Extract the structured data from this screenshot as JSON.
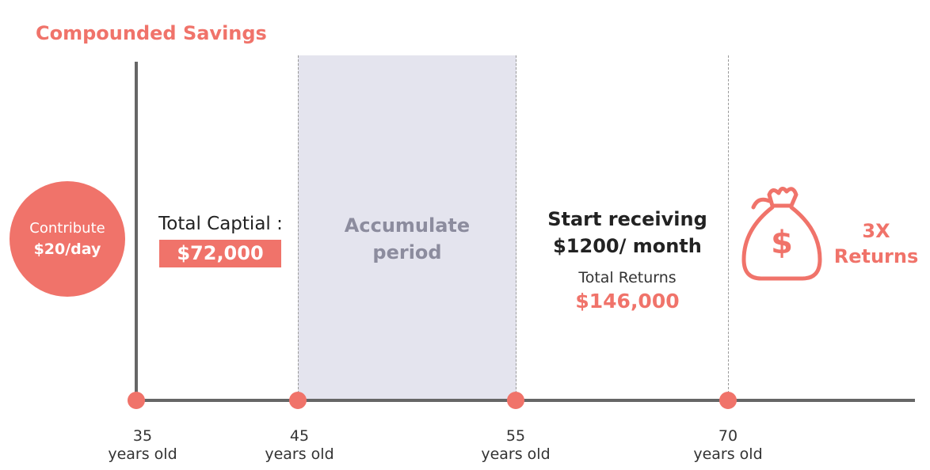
{
  "title": "Compounded Savings",
  "contribution": {
    "line1": "Contribute",
    "line2": "$20/day"
  },
  "capital": {
    "label": "Total Captial :",
    "value": "$72,000"
  },
  "accumulate": {
    "line1": "Accumulate",
    "line2": "period"
  },
  "receiving": {
    "line1": "Start receiving",
    "line2": "$1200/ month"
  },
  "returns": {
    "label": "Total Returns",
    "value": "$146,000"
  },
  "multiplier": {
    "line1": "3X",
    "line2": "Returns"
  },
  "timeline": [
    {
      "age": "35",
      "unit": "years old"
    },
    {
      "age": "45",
      "unit": "years old"
    },
    {
      "age": "55",
      "unit": "years old"
    },
    {
      "age": "70",
      "unit": "years old"
    }
  ],
  "icons": {
    "money_bag": "money-bag-icon"
  },
  "colors": {
    "accent": "#f0736a",
    "band": "#e4e4ee",
    "axis": "#666666"
  }
}
